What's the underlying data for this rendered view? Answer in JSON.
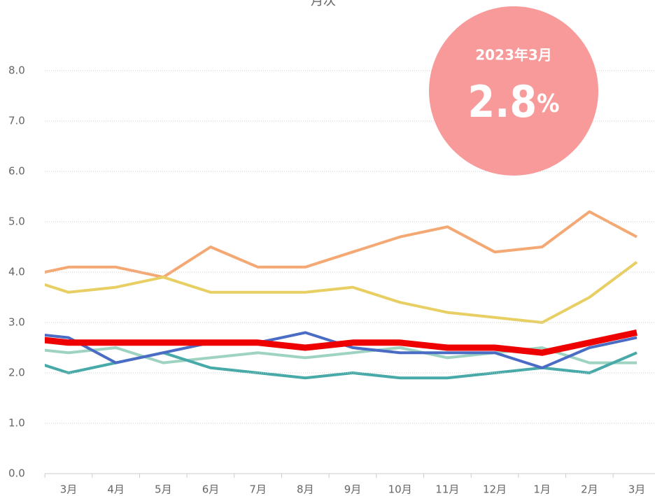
{
  "chart_data": {
    "type": "line",
    "title": "月次",
    "categories": [
      null,
      "3月",
      "4月",
      "5月",
      "6月",
      "7月",
      "8月",
      "9月",
      "10月",
      "11月",
      "12月",
      "1月",
      "2月",
      "3月"
    ],
    "series": [
      {
        "color": "#f4a873",
        "values": [
          3.9,
          4.1,
          4.1,
          3.9,
          4.5,
          4.1,
          4.1,
          4.4,
          4.7,
          4.9,
          4.4,
          4.5,
          5.2,
          4.7
        ]
      },
      {
        "color": "#e8cf63",
        "values": [
          3.9,
          3.6,
          3.7,
          3.9,
          3.6,
          3.6,
          3.6,
          3.7,
          3.4,
          3.2,
          3.1,
          3.0,
          3.5,
          4.2
        ]
      },
      {
        "color": "#9ed3c2",
        "values": [
          2.5,
          2.4,
          2.5,
          2.2,
          2.3,
          2.4,
          2.3,
          2.4,
          2.5,
          2.3,
          2.4,
          2.5,
          2.2,
          2.2
        ]
      },
      {
        "color": "#47a9a8",
        "values": [
          2.3,
          2.0,
          2.2,
          2.4,
          2.1,
          2.0,
          1.9,
          2.0,
          1.9,
          1.9,
          2.0,
          2.1,
          2.0,
          2.4
        ]
      },
      {
        "color": "#4a6cc4",
        "values": [
          2.8,
          2.7,
          2.2,
          2.4,
          2.6,
          2.6,
          2.8,
          2.5,
          2.4,
          2.4,
          2.4,
          2.1,
          2.5,
          2.7
        ]
      },
      {
        "color": "#ee0000",
        "values": [
          2.7,
          2.6,
          2.6,
          2.6,
          2.6,
          2.6,
          2.5,
          2.6,
          2.6,
          2.5,
          2.5,
          2.4,
          2.6,
          2.8
        ]
      }
    ],
    "ylim": [
      0,
      8
    ],
    "yticks": [
      {
        "value": 0,
        "label": "0.0"
      },
      {
        "value": 1,
        "label": "1.0"
      },
      {
        "value": 2,
        "label": "2.0"
      },
      {
        "value": 3,
        "label": "3.0"
      },
      {
        "value": 4,
        "label": "4.0"
      },
      {
        "value": 5,
        "label": "5.0"
      },
      {
        "value": 6,
        "label": "6.0"
      },
      {
        "value": 7,
        "label": "7.0"
      },
      {
        "value": 8,
        "label": "8.0"
      }
    ],
    "grid": true,
    "badge": {
      "label": "2023年3月",
      "value": 2.8,
      "unit": "%",
      "color": "#f99a9a"
    }
  }
}
